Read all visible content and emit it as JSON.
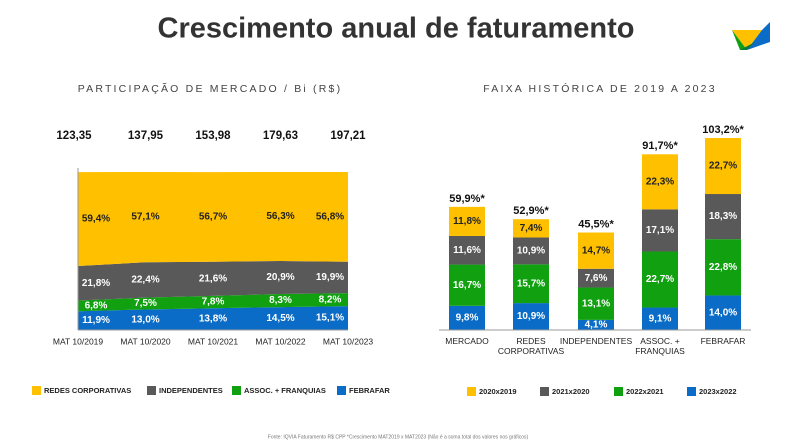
{
  "title": "Crescimento anual de faturamento",
  "footer": "Fonte: IQVIA    Faturamento R$ CPP    *Crescimento MAT2019 x MAT2023 (Não é a soma total dos valores nos gráficos)",
  "chart_data": [
    {
      "type": "area",
      "title": "PARTICIPAÇÃO DE MERCADO / Bi (R$)",
      "categories": [
        "MAT 10/2019",
        "MAT 10/2020",
        "MAT 10/2021",
        "MAT 10/2022",
        "MAT 10/2023"
      ],
      "total_labels": [
        "123,35",
        "137,95",
        "153,98",
        "179,63",
        "197,21"
      ],
      "legend": "bottom",
      "series": [
        {
          "name": "REDES CORPORATIVAS",
          "color": "#FFC000",
          "values": [
            59.4,
            57.1,
            56.7,
            56.3,
            56.8
          ],
          "value_labels": [
            "59,4%",
            "57,1%",
            "56,7%",
            "56,3%",
            "56,8%"
          ]
        },
        {
          "name": "INDEPENDENTES",
          "color": "#595959",
          "values": [
            21.8,
            22.4,
            21.6,
            20.9,
            19.9
          ],
          "value_labels": [
            "21,8%",
            "22,4%",
            "21,6%",
            "20,9%",
            "19,9%"
          ]
        },
        {
          "name": "ASSOC. + FRANQUIAS",
          "color": "#10A010",
          "values": [
            6.8,
            7.5,
            7.8,
            8.3,
            8.2
          ],
          "value_labels": [
            "6,8%",
            "7,5%",
            "7,8%",
            "8,3%",
            "8,2%"
          ]
        },
        {
          "name": "FEBRAFAR",
          "color": "#0A6CC6",
          "values": [
            11.9,
            13.0,
            13.8,
            14.5,
            15.1
          ],
          "value_labels": [
            "11,9%",
            "13,0%",
            "13,8%",
            "14,5%",
            "15,1%"
          ]
        }
      ]
    },
    {
      "type": "bar",
      "title": "FAIXA HISTÓRICA DE 2019 A 2023",
      "categories": [
        "MERCADO",
        "REDES CORPORATIVAS",
        "INDEPENDENTES",
        "ASSOC. + FRANQUIAS",
        "FEBRAFAR"
      ],
      "total_labels": [
        "59,9%*",
        "52,9%*",
        "45,5%*",
        "91,7%*",
        "103,2%*"
      ],
      "legend": "bottom",
      "series": [
        {
          "name": "2020x2019",
          "color": "#FFC000",
          "values": [
            11.8,
            7.4,
            14.7,
            22.3,
            22.7
          ],
          "value_labels": [
            "11,8%",
            "7,4%",
            "14,7%",
            "22,3%",
            "22,7%"
          ]
        },
        {
          "name": "2021x2020",
          "color": "#595959",
          "values": [
            11.6,
            10.9,
            7.6,
            17.1,
            18.3
          ],
          "value_labels": [
            "11,6%",
            "10,9%",
            "7,6%",
            "17,1%",
            "18,3%"
          ]
        },
        {
          "name": "2022x2021",
          "color": "#10A010",
          "values": [
            16.7,
            15.7,
            13.1,
            22.7,
            22.8
          ],
          "value_labels": [
            "16,7%",
            "15,7%",
            "13,1%",
            "22,7%",
            "22,8%"
          ]
        },
        {
          "name": "2023x2022",
          "color": "#0A6CC6",
          "values": [
            9.8,
            10.9,
            4.1,
            9.1,
            14.0
          ],
          "value_labels": [
            "9,8%",
            "10,9%",
            "4,1%",
            "9,1%",
            "14,0%"
          ]
        }
      ]
    }
  ]
}
